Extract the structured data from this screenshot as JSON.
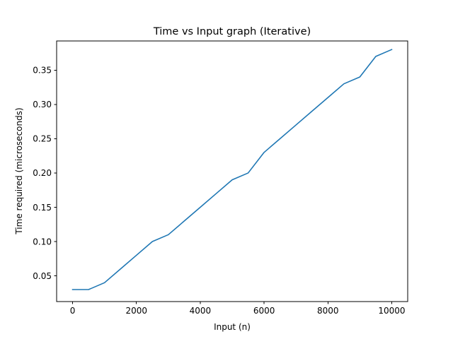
{
  "chart_data": {
    "type": "line",
    "title": "Time vs Input graph (Iterative)",
    "xlabel": "Input (n)",
    "ylabel": "Time required (microseconds)",
    "xlim": [
      -500,
      10500
    ],
    "ylim": [
      0.0125,
      0.3925
    ],
    "xticks": [
      0,
      2000,
      4000,
      6000,
      8000,
      10000
    ],
    "xtick_labels": [
      "0",
      "2000",
      "4000",
      "6000",
      "8000",
      "10000"
    ],
    "yticks": [
      0.05,
      0.1,
      0.15,
      0.2,
      0.25,
      0.3,
      0.35
    ],
    "ytick_labels": [
      "0.05",
      "0.10",
      "0.15",
      "0.20",
      "0.25",
      "0.30",
      "0.35"
    ],
    "grid": false,
    "series": [
      {
        "color": "#1f77b4",
        "x": [
          0,
          500,
          1000,
          1500,
          2000,
          2500,
          3000,
          3500,
          4000,
          4500,
          5000,
          5500,
          6000,
          6500,
          7000,
          7500,
          8000,
          8500,
          9000,
          9500,
          10000
        ],
        "y": [
          0.03,
          0.03,
          0.04,
          0.06,
          0.08,
          0.1,
          0.11,
          0.13,
          0.15,
          0.17,
          0.19,
          0.2,
          0.23,
          0.25,
          0.27,
          0.29,
          0.31,
          0.33,
          0.34,
          0.37,
          0.38
        ]
      }
    ]
  }
}
